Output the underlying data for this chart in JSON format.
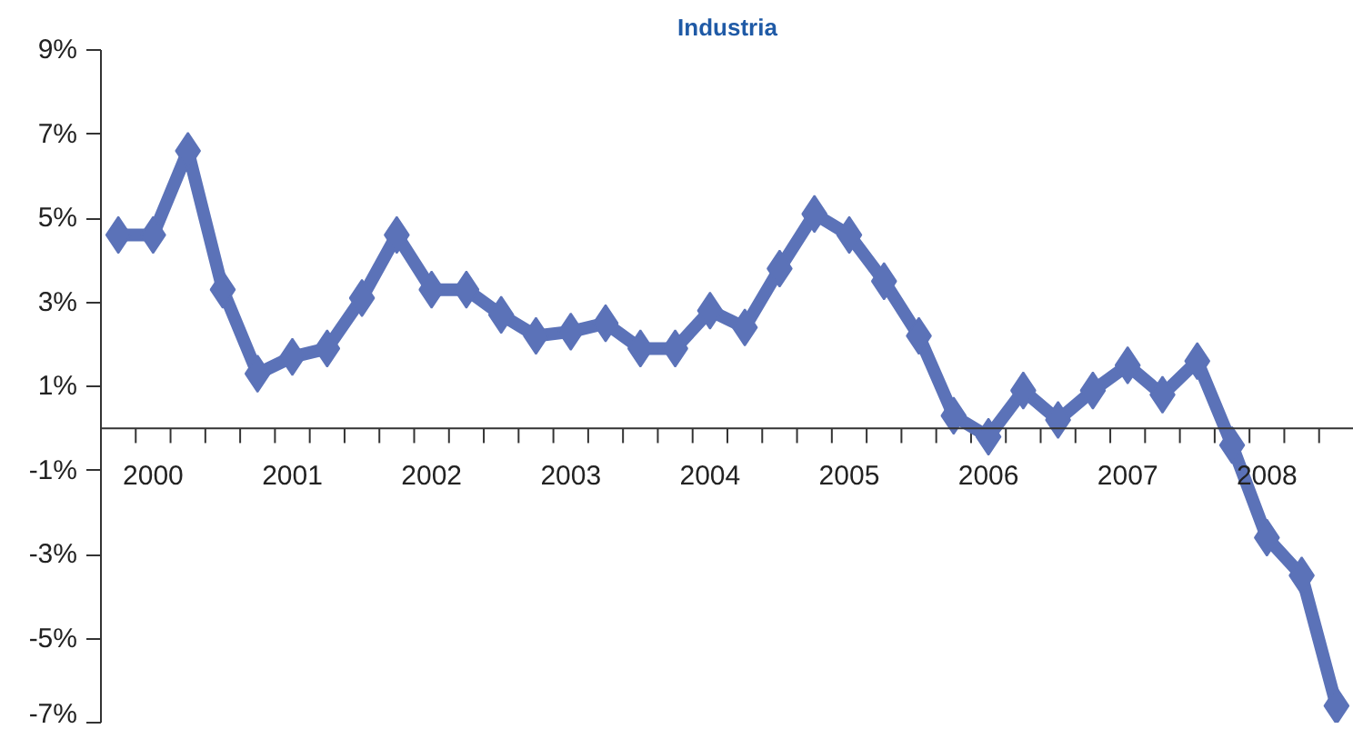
{
  "chart_data": {
    "type": "line",
    "title": "Industria",
    "x": [
      2000.125,
      2000.375,
      2000.625,
      2000.875,
      2001.125,
      2001.375,
      2001.625,
      2001.875,
      2002.125,
      2002.375,
      2002.625,
      2002.875,
      2003.125,
      2003.375,
      2003.625,
      2003.875,
      2004.125,
      2004.375,
      2004.625,
      2004.875,
      2005.125,
      2005.375,
      2005.625,
      2005.875,
      2006.125,
      2006.375,
      2006.625,
      2006.875,
      2007.125,
      2007.375,
      2007.625,
      2007.875,
      2008.125,
      2008.375,
      2008.625,
      2008.875
    ],
    "series": [
      {
        "color": "#5b72b8",
        "values": [
          4.6,
          4.6,
          6.6,
          3.3,
          1.3,
          1.7,
          1.9,
          3.1,
          4.6,
          3.3,
          3.3,
          2.7,
          2.2,
          2.3,
          2.5,
          1.9,
          1.9,
          2.8,
          2.4,
          3.8,
          5.1,
          4.6,
          3.5,
          2.2,
          0.3,
          -0.2,
          0.9,
          0.2,
          0.9,
          1.5,
          0.8,
          1.6,
          -0.4,
          -2.6,
          -3.5,
          -6.6
        ]
      }
    ],
    "xlim": [
      2000,
      2009
    ],
    "xticks": [
      {
        "value": 2000.25,
        "label": null
      },
      {
        "value": 2000.5,
        "label": null
      },
      {
        "value": 2000.75,
        "label": null
      },
      {
        "value": 2001,
        "label": null
      },
      {
        "value": 2001.25,
        "label": null
      },
      {
        "value": 2001.5,
        "label": null
      },
      {
        "value": 2001.75,
        "label": null
      },
      {
        "value": 2002,
        "label": null
      },
      {
        "value": 2002.25,
        "label": null
      },
      {
        "value": 2002.5,
        "label": null
      },
      {
        "value": 2002.75,
        "label": null
      },
      {
        "value": 2003,
        "label": null
      },
      {
        "value": 2003.25,
        "label": null
      },
      {
        "value": 2003.5,
        "label": null
      },
      {
        "value": 2003.75,
        "label": null
      },
      {
        "value": 2004,
        "label": null
      },
      {
        "value": 2004.25,
        "label": null
      },
      {
        "value": 2004.5,
        "label": null
      },
      {
        "value": 2004.75,
        "label": null
      },
      {
        "value": 2005,
        "label": null
      },
      {
        "value": 2005.25,
        "label": null
      },
      {
        "value": 2005.5,
        "label": null
      },
      {
        "value": 2005.75,
        "label": null
      },
      {
        "value": 2006,
        "label": null
      },
      {
        "value": 2006.25,
        "label": null
      },
      {
        "value": 2006.5,
        "label": null
      },
      {
        "value": 2006.75,
        "label": null
      },
      {
        "value": 2007,
        "label": null
      },
      {
        "value": 2007.25,
        "label": null
      },
      {
        "value": 2007.5,
        "label": null
      },
      {
        "value": 2007.75,
        "label": null
      },
      {
        "value": 2008,
        "label": null
      },
      {
        "value": 2008.25,
        "label": null
      },
      {
        "value": 2008.5,
        "label": null
      },
      {
        "value": 2008.75,
        "label": null
      },
      {
        "value": 2000.375,
        "label": "2000"
      },
      {
        "value": 2001.375,
        "label": "2001"
      },
      {
        "value": 2002.375,
        "label": "2002"
      },
      {
        "value": 2003.375,
        "label": "2003"
      },
      {
        "value": 2004.375,
        "label": "2004"
      },
      {
        "value": 2005.375,
        "label": "2005"
      },
      {
        "value": 2006.375,
        "label": "2006"
      },
      {
        "value": 2007.375,
        "label": "2007"
      },
      {
        "value": 2008.375,
        "label": "2008"
      }
    ],
    "ylim": [
      -7,
      9
    ],
    "yticks": [
      {
        "value": 9,
        "label": "9%"
      },
      {
        "value": 7,
        "label": "7%"
      },
      {
        "value": 5,
        "label": "5%"
      },
      {
        "value": 3,
        "label": "3%"
      },
      {
        "value": 1,
        "label": "1%"
      },
      {
        "value": -1,
        "label": "-1%"
      },
      {
        "value": -3,
        "label": "-3%"
      },
      {
        "value": -5,
        "label": "-5%"
      },
      {
        "value": -7,
        "label": "-7%"
      }
    ],
    "marker": "diamond",
    "line_style": "solid",
    "grid": false
  }
}
